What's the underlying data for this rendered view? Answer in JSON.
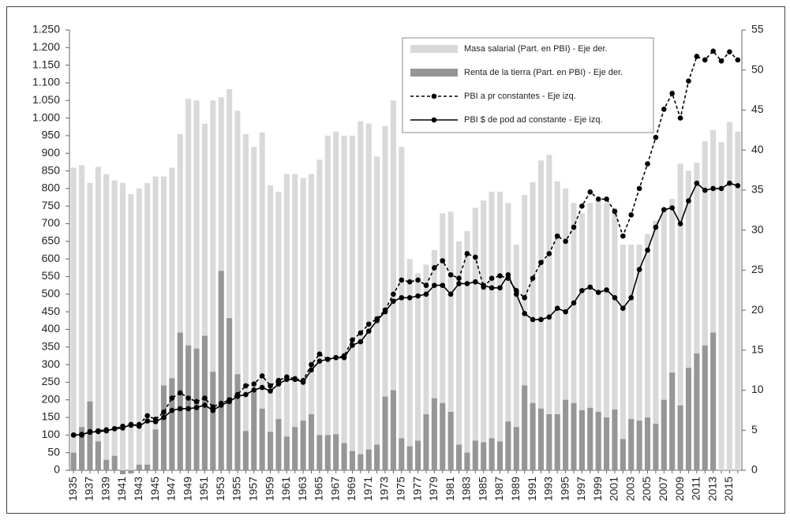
{
  "chart_data": {
    "type": "combo",
    "categories": [
      1935,
      null,
      1937,
      null,
      1939,
      null,
      1941,
      null,
      1943,
      null,
      1945,
      null,
      1947,
      null,
      1949,
      null,
      1951,
      null,
      1953,
      null,
      1955,
      null,
      1957,
      null,
      1959,
      null,
      1961,
      null,
      1963,
      null,
      1965,
      null,
      1967,
      null,
      1969,
      null,
      1971,
      null,
      1973,
      null,
      1975,
      null,
      1977,
      null,
      1979,
      null,
      1981,
      null,
      1983,
      null,
      1985,
      null,
      1987,
      null,
      1989,
      null,
      1991,
      null,
      1993,
      null,
      1995,
      null,
      1997,
      null,
      1999,
      null,
      2001,
      null,
      2003,
      null,
      2005,
      null,
      2007,
      null,
      2009,
      null,
      2011,
      null,
      2013,
      null,
      2015,
      null
    ],
    "series": [
      {
        "name": "Masa salarial (Part. en PBI) - Eje der.",
        "type": "bar",
        "axis": "y2",
        "color": "#d9d9d9",
        "values": [
          37.8,
          38.1,
          35.9,
          37.9,
          37,
          36.2,
          35.9,
          34.5,
          35.2,
          35.9,
          36.7,
          36.7,
          37.8,
          42,
          46.4,
          46.2,
          43.3,
          46.2,
          46.6,
          47.6,
          44.9,
          42,
          40.4,
          42.2,
          35.6,
          34.8,
          37,
          37,
          36.5,
          37,
          38.8,
          41.8,
          42.3,
          41.8,
          41.8,
          43.6,
          43.3,
          39.2,
          43,
          46.2,
          40.4,
          26.4,
          24.6,
          25.7,
          27.5,
          32.1,
          32.3,
          28.6,
          29.9,
          32.8,
          33.7,
          34.8,
          34.8,
          33.4,
          28.2,
          34.4,
          36,
          38.7,
          39.4,
          36.1,
          35.2,
          33.4,
          32.1,
          33.4,
          33.9,
          33.4,
          32.8,
          28.2,
          28.2,
          28.2,
          29.5,
          31.2,
          32.6,
          33.9,
          38.3,
          37.4,
          38.4,
          41.1,
          42.5,
          41,
          43.5,
          42.3
        ]
      },
      {
        "name": "Renta de la tierra (Part. en PBI) - Eje der.",
        "type": "bar",
        "axis": "y2",
        "color": "#969696",
        "values": [
          2.2,
          5.4,
          8.6,
          3.6,
          1.3,
          1.8,
          -0.5,
          -0.4,
          0.7,
          0.7,
          5.1,
          10.6,
          11.5,
          17.2,
          15.6,
          15.2,
          16.8,
          12.3,
          24.9,
          19,
          12,
          4.9,
          9.9,
          7.7,
          4.8,
          6.4,
          4.2,
          5.4,
          6.2,
          7,
          4.4,
          4.4,
          4.5,
          3.4,
          2.4,
          2,
          2.6,
          3.2,
          9.2,
          10,
          4,
          3,
          3.7,
          7,
          9,
          8.4,
          7.3,
          3.2,
          2.2,
          3.7,
          3.5,
          4,
          3.6,
          6.1,
          5.4,
          10.6,
          8.4,
          7.7,
          7,
          7,
          8.8,
          8.4,
          7.5,
          7.8,
          7.3,
          6.6,
          7.6,
          3.9,
          6.4,
          6.2,
          6.6,
          5.8,
          8.8,
          12.2,
          8.1,
          12.8,
          14.6,
          15.6,
          17.2,
          null,
          null,
          null
        ]
      },
      {
        "name": "PBI a pr constantes - Eje izq.",
        "type": "line",
        "dashed": true,
        "color": "#000000",
        "values": [
          100,
          100,
          110,
          112,
          115,
          118,
          125,
          128,
          130,
          155,
          145,
          165,
          205,
          220,
          205,
          195,
          205,
          180,
          190,
          200,
          215,
          240,
          245,
          268,
          240,
          255,
          265,
          260,
          255,
          300,
          330,
          315,
          320,
          325,
          370,
          390,
          415,
          430,
          455,
          500,
          540,
          535,
          540,
          525,
          575,
          595,
          555,
          545,
          615,
          605,
          520,
          545,
          552,
          545,
          510,
          490,
          545,
          590,
          615,
          665,
          650,
          690,
          750,
          790,
          770,
          770,
          735,
          665,
          725,
          800,
          870,
          945,
          1025,
          1070,
          1000,
          1105,
          1175,
          1165,
          1190,
          1162,
          1188,
          1165
        ]
      },
      {
        "name": "PBI $ de pod ad constante - Eje izq.",
        "type": "line",
        "dashed": false,
        "color": "#000000",
        "values": [
          100,
          102,
          108,
          110,
          112,
          118,
          120,
          130,
          125,
          140,
          138,
          150,
          170,
          175,
          175,
          178,
          185,
          170,
          185,
          195,
          210,
          215,
          228,
          235,
          225,
          245,
          258,
          258,
          250,
          285,
          310,
          315,
          320,
          320,
          355,
          365,
          395,
          425,
          450,
          480,
          490,
          490,
          495,
          500,
          525,
          525,
          500,
          530,
          530,
          535,
          525,
          518,
          518,
          555,
          500,
          445,
          428,
          428,
          435,
          460,
          450,
          475,
          510,
          520,
          505,
          512,
          490,
          460,
          490,
          570,
          625,
          690,
          740,
          745,
          700,
          765,
          815,
          795,
          800,
          800,
          815,
          808
        ]
      }
    ],
    "ylim": [
      0,
      1250
    ],
    "yticks": [
      0,
      50,
      100,
      150,
      200,
      250,
      300,
      350,
      400,
      450,
      500,
      550,
      600,
      650,
      700,
      750,
      800,
      850,
      900,
      950,
      {
        "value": 1000,
        "label": "1.000"
      },
      {
        "value": 1050,
        "label": "1.050"
      },
      {
        "value": 1100,
        "label": "1.100"
      },
      {
        "value": 1150,
        "label": "1.150"
      },
      {
        "value": 1200,
        "label": "1.200"
      },
      {
        "value": 1250,
        "label": "1.250"
      }
    ],
    "y2lim": [
      0,
      55
    ],
    "y2ticks": [
      0,
      5,
      10,
      15,
      20,
      25,
      30,
      35,
      40,
      45,
      50,
      55
    ],
    "grid": false,
    "legend": "top-right"
  }
}
